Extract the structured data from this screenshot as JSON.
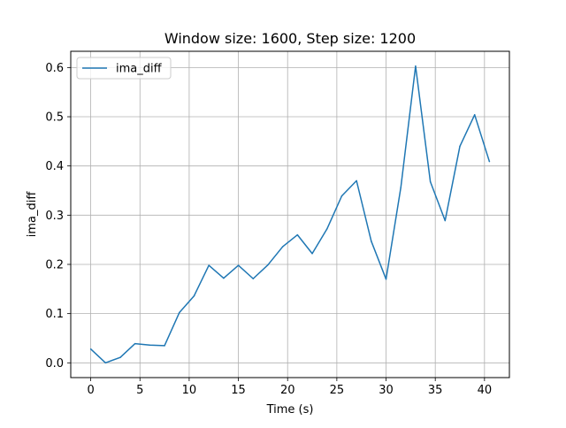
{
  "chart_data": {
    "type": "line",
    "title": "Window size: 1600, Step size: 1200",
    "xlabel": "Time (s)",
    "ylabel": "ima_diff",
    "xlim": [
      -2.03,
      42.53
    ],
    "ylim": [
      -0.03,
      0.633
    ],
    "xticks": [
      0,
      5,
      10,
      15,
      20,
      25,
      30,
      35,
      40
    ],
    "yticks": [
      0.0,
      0.1,
      0.2,
      0.3,
      0.4,
      0.5,
      0.6
    ],
    "xtick_labels": [
      "0",
      "5",
      "10",
      "15",
      "20",
      "25",
      "30",
      "35",
      "40"
    ],
    "ytick_labels": [
      "0.0",
      "0.1",
      "0.2",
      "0.3",
      "0.4",
      "0.5",
      "0.6"
    ],
    "grid": true,
    "legend_position": "top-left",
    "series": [
      {
        "name": "ima_diff",
        "color": "#1f77b4",
        "x": [
          0,
          1.5,
          3,
          4.5,
          6,
          7.5,
          9,
          10.5,
          12,
          13.5,
          15,
          16.5,
          18,
          19.5,
          21,
          22.5,
          24,
          25.5,
          27,
          28.5,
          30,
          31.5,
          33,
          34.5,
          36,
          37.5,
          39,
          40.5
        ],
        "y": [
          0.028,
          0.0,
          0.011,
          0.039,
          0.036,
          0.035,
          0.102,
          0.136,
          0.198,
          0.172,
          0.198,
          0.171,
          0.199,
          0.236,
          0.26,
          0.222,
          0.272,
          0.339,
          0.37,
          0.247,
          0.17,
          0.356,
          0.603,
          0.368,
          0.289,
          0.44,
          0.504,
          0.409
        ]
      }
    ]
  }
}
